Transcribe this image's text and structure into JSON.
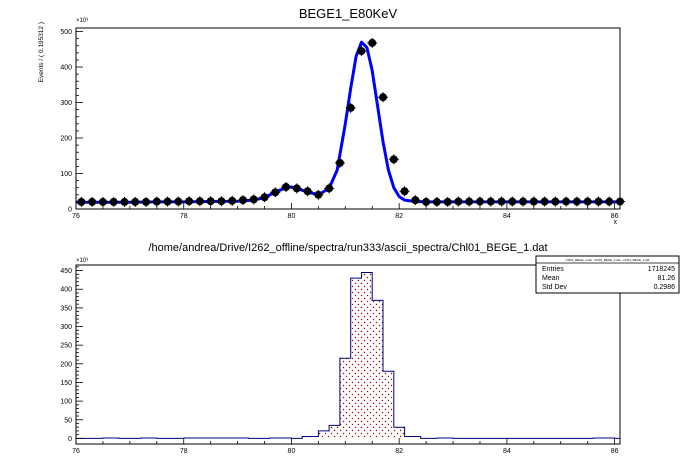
{
  "chart_data": [
    {
      "type": "scatter",
      "title": "BEGE1_E80KeV",
      "xlabel": "x",
      "ylabel": "Events / ( 0.195312 )",
      "y_multiplier": "×10³",
      "xlim": [
        76,
        86.1
      ],
      "ylim": [
        0,
        510
      ],
      "xticks": [
        76,
        78,
        80,
        82,
        84,
        86
      ],
      "yticks": [
        0,
        100,
        200,
        300,
        400,
        500
      ],
      "grid": false,
      "series": [
        {
          "kind": "points",
          "x": [
            76.1,
            76.3,
            76.5,
            76.7,
            76.9,
            77.1,
            77.3,
            77.5,
            77.7,
            77.9,
            78.1,
            78.3,
            78.5,
            78.7,
            78.9,
            79.1,
            79.3,
            79.5,
            79.7,
            79.9,
            80.1,
            80.3,
            80.5,
            80.7,
            80.9,
            81.1,
            81.3,
            81.5,
            81.7,
            81.9,
            82.1,
            82.3,
            82.5,
            82.7,
            82.9,
            83.1,
            83.3,
            83.5,
            83.7,
            83.9,
            84.1,
            84.3,
            84.5,
            84.7,
            84.9,
            85.1,
            85.3,
            85.5,
            85.7,
            85.9,
            86.1
          ],
          "y": [
            20,
            20,
            20,
            20,
            20,
            20,
            20,
            21,
            21,
            21,
            22,
            22,
            22,
            22,
            23,
            25,
            27,
            33,
            47,
            62,
            58,
            50,
            40,
            58,
            130,
            285,
            445,
            468,
            315,
            140,
            50,
            25,
            20,
            20,
            20,
            21,
            21,
            21,
            21,
            21,
            21,
            21,
            21,
            21,
            21,
            21,
            21,
            21,
            21,
            21,
            21
          ]
        },
        {
          "kind": "curve",
          "color": "#0000ff",
          "x": [
            76,
            76.5,
            77,
            77.5,
            78,
            78.5,
            79,
            79.3,
            79.5,
            79.7,
            79.9,
            80.0,
            80.1,
            80.3,
            80.5,
            80.7,
            80.85,
            81.0,
            81.1,
            81.2,
            81.3,
            81.4,
            81.5,
            81.6,
            81.7,
            81.8,
            81.9,
            82.0,
            82.1,
            82.3,
            82.5,
            83,
            83.5,
            84,
            84.5,
            85,
            85.5,
            86,
            86.1
          ],
          "y": [
            19,
            19,
            19,
            20,
            20,
            21,
            22,
            25,
            32,
            48,
            60,
            62,
            58,
            48,
            40,
            58,
            110,
            240,
            340,
            430,
            470,
            455,
            390,
            290,
            190,
            110,
            60,
            35,
            25,
            21,
            20,
            20,
            20,
            20,
            20,
            20,
            20,
            20,
            20
          ]
        }
      ]
    },
    {
      "type": "bar",
      "title": "/home/andrea/Drive/I262_offline/spectra/run333/ascii_spectra/Chl01_BEGE_1.dat",
      "xlabel": "",
      "ylabel": "",
      "y_multiplier": "×10³",
      "xlim": [
        76,
        86.1
      ],
      "ylim": [
        -15,
        465
      ],
      "xticks": [
        76,
        78,
        80,
        82,
        84,
        86
      ],
      "yticks": [
        0,
        50,
        100,
        150,
        200,
        250,
        300,
        350,
        400,
        450
      ],
      "grid": false,
      "histogram": {
        "line_color": "#00007f",
        "fill_color": "#aa0000",
        "edges": [
          76,
          76.5,
          76.8,
          77.2,
          77.5,
          78,
          79.2,
          79.6,
          80,
          80.2,
          80.5,
          80.7,
          80.9,
          81.1,
          81.3,
          81.5,
          81.7,
          81.9,
          82.1,
          82.4,
          82.7,
          83,
          85.6,
          86,
          86.1
        ],
        "values": [
          0,
          1,
          0,
          1,
          0,
          1,
          0,
          1,
          0,
          5,
          20,
          35,
          215,
          430,
          445,
          370,
          180,
          30,
          5,
          0,
          1,
          0,
          1,
          0
        ]
      },
      "stats_box": {
        "header": "Chl01_BEGE_1.dat : Chl01_BEGE_1.dat - Chl01_BEGE_1.dat",
        "entries_label": "Entries",
        "entries_value": "1718245",
        "mean_label": "Mean",
        "mean_value": "81.26",
        "std_label": "Std Dev",
        "std_value": "0.2986"
      }
    }
  ]
}
